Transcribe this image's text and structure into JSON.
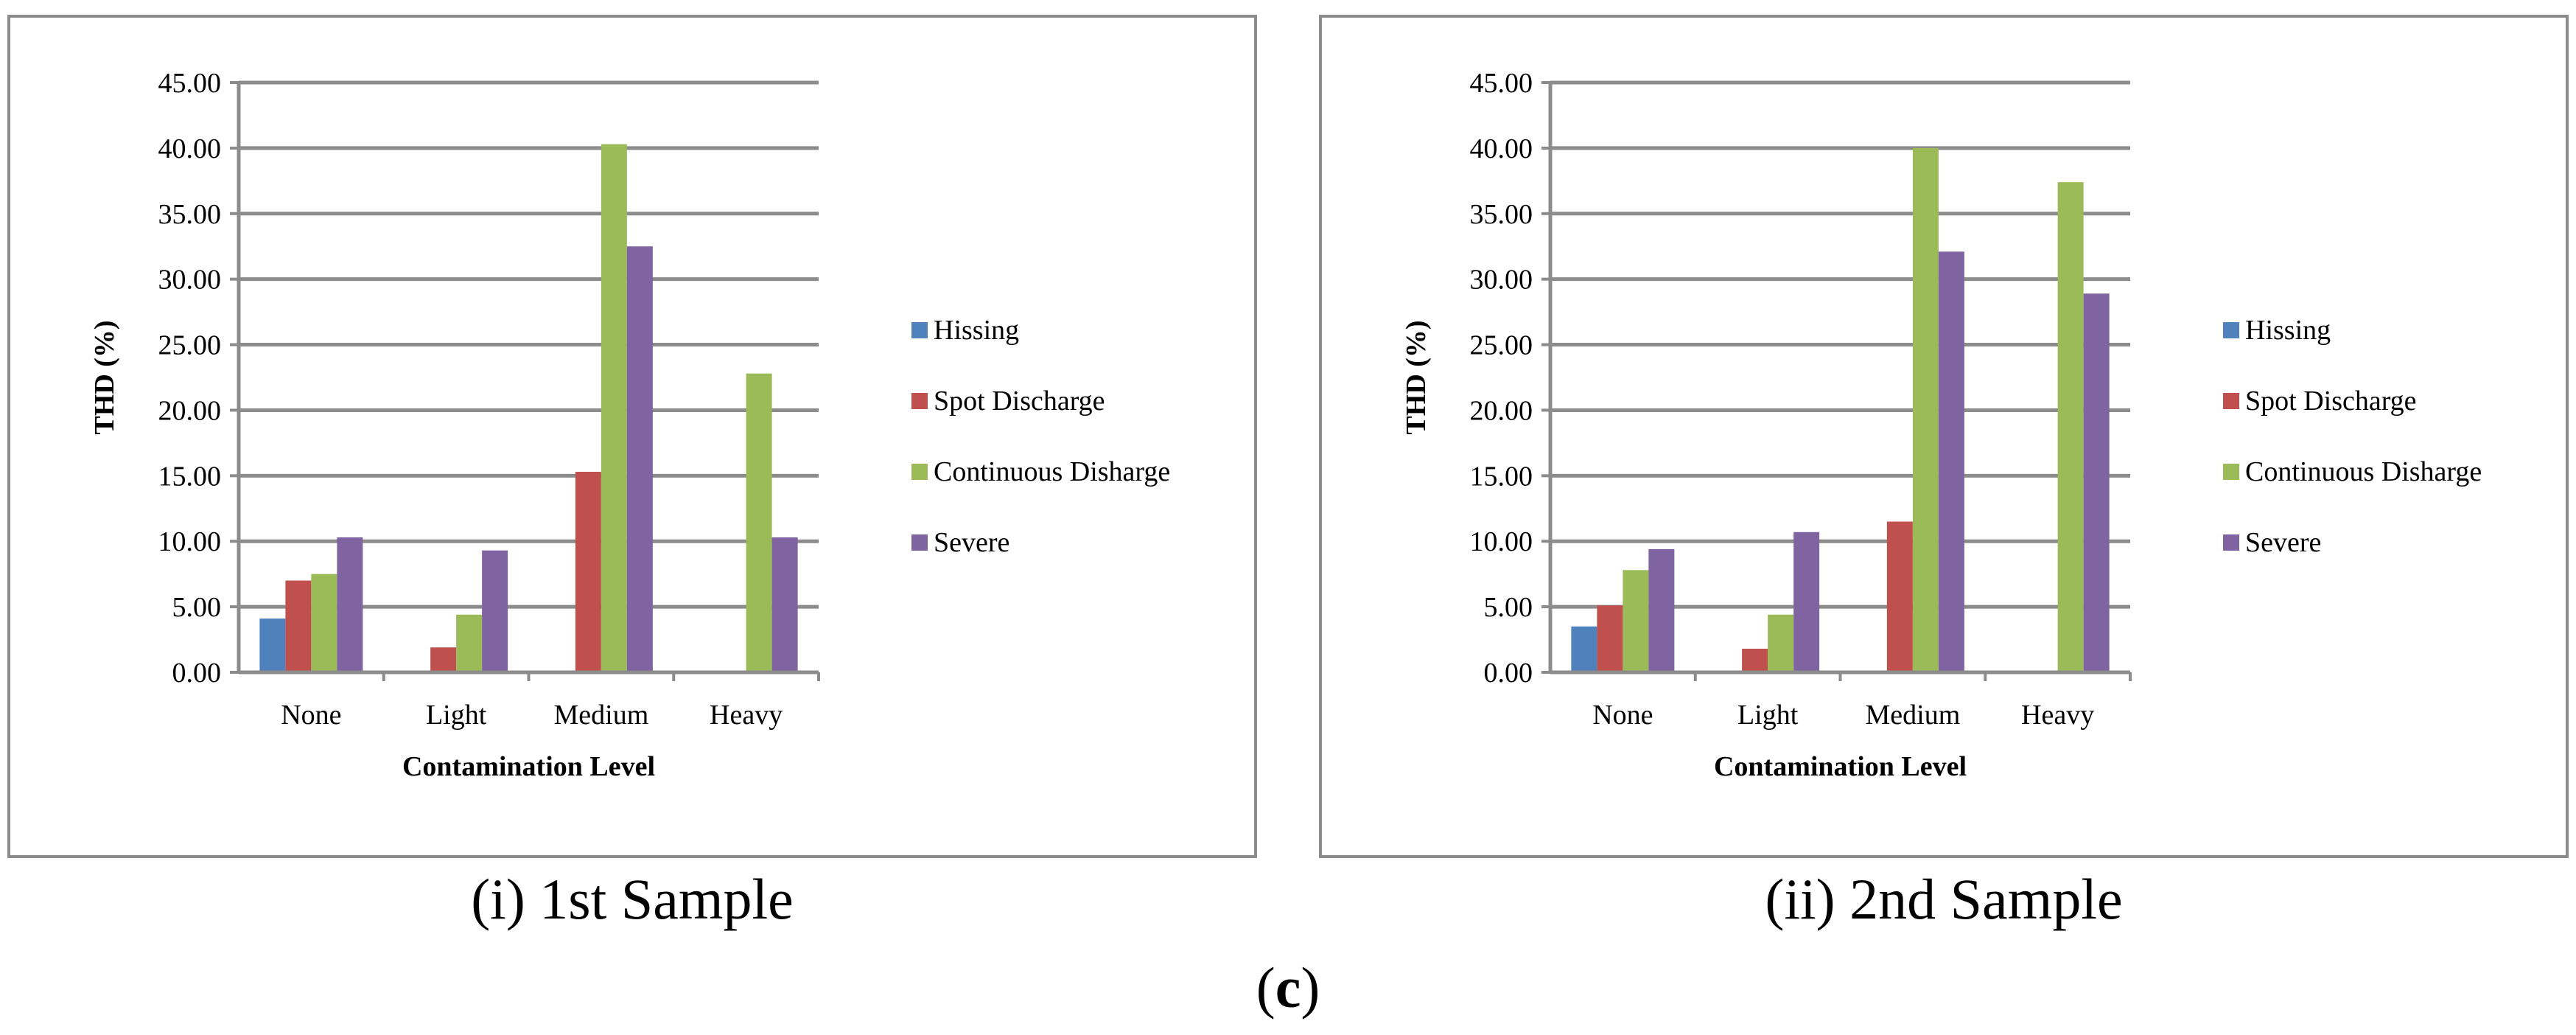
{
  "figure_label": "c",
  "colors": {
    "hissing": "#4F81BD",
    "spot_discharge": "#C0504D",
    "continuous_disharge": "#9BBB59",
    "severe": "#8064A2",
    "gridline": "#8c8c8c"
  },
  "chart_data": [
    {
      "type": "bar",
      "caption": "(i) 1st Sample",
      "title": "",
      "xlabel": "Contamination Level",
      "ylabel": "THD (%)",
      "ylim": [
        0,
        45
      ],
      "ytick_step": 5,
      "yticks": [
        "0.00",
        "5.00",
        "10.00",
        "15.00",
        "20.00",
        "25.00",
        "30.00",
        "35.00",
        "40.00",
        "45.00"
      ],
      "grid": true,
      "legend_position": "right",
      "categories": [
        "None",
        "Light",
        "Medium",
        "Heavy"
      ],
      "series": [
        {
          "name": "Hissing",
          "color": "#4F81BD",
          "values": [
            4.1,
            0,
            0,
            0
          ]
        },
        {
          "name": "Spot Discharge",
          "color": "#C0504D",
          "values": [
            7.0,
            1.9,
            15.3,
            0
          ]
        },
        {
          "name": "Continuous Disharge",
          "color": "#9BBB59",
          "values": [
            7.5,
            4.4,
            40.3,
            22.8
          ]
        },
        {
          "name": "Severe",
          "color": "#8064A2",
          "values": [
            10.3,
            9.3,
            32.5,
            10.3
          ]
        }
      ]
    },
    {
      "type": "bar",
      "caption": "(ii) 2nd Sample",
      "title": "",
      "xlabel": "Contamination Level",
      "ylabel": "THD (%)",
      "ylim": [
        0,
        45
      ],
      "ytick_step": 5,
      "yticks": [
        "0.00",
        "5.00",
        "10.00",
        "15.00",
        "20.00",
        "25.00",
        "30.00",
        "35.00",
        "40.00",
        "45.00"
      ],
      "grid": true,
      "legend_position": "right",
      "categories": [
        "None",
        "Light",
        "Medium",
        "Heavy"
      ],
      "series": [
        {
          "name": "Hissing",
          "color": "#4F81BD",
          "values": [
            3.5,
            0,
            0,
            0
          ]
        },
        {
          "name": "Spot Discharge",
          "color": "#C0504D",
          "values": [
            5.1,
            1.8,
            11.5,
            0
          ]
        },
        {
          "name": "Continuous Disharge",
          "color": "#9BBB59",
          "values": [
            7.8,
            4.4,
            40.0,
            37.4
          ]
        },
        {
          "name": "Severe",
          "color": "#8064A2",
          "values": [
            9.4,
            10.7,
            32.1,
            28.9
          ]
        }
      ]
    }
  ]
}
